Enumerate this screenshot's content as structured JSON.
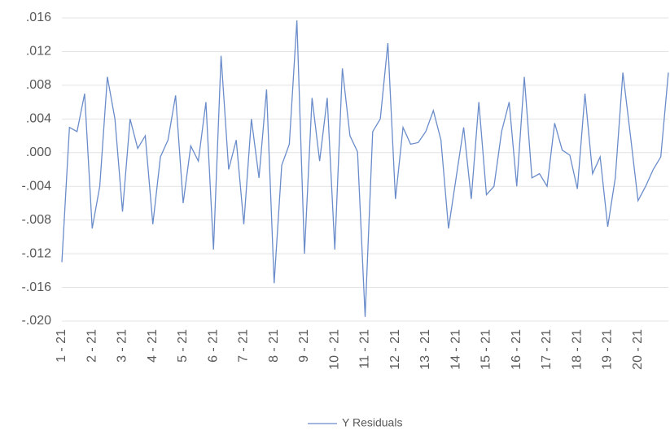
{
  "chart_data": {
    "type": "line",
    "categories": [
      "1 - 21",
      null,
      null,
      null,
      "2 - 21",
      null,
      null,
      null,
      "3 - 21",
      null,
      null,
      null,
      "4 - 21",
      null,
      null,
      null,
      "5 - 21",
      null,
      null,
      null,
      "6 - 21",
      null,
      null,
      null,
      "7 - 21",
      null,
      null,
      null,
      "8 - 21",
      null,
      null,
      null,
      "9 - 21",
      null,
      null,
      null,
      "10 - 21",
      null,
      null,
      null,
      "11 - 21",
      null,
      null,
      null,
      "12 - 21",
      null,
      null,
      null,
      "13 - 21",
      null,
      null,
      null,
      "14 - 21",
      null,
      null,
      null,
      "15 - 21",
      null,
      null,
      null,
      "16 - 21",
      null,
      null,
      null,
      "17 - 21",
      null,
      null,
      null,
      "18 - 21",
      null,
      null,
      null,
      "19 - 21",
      null,
      null,
      null,
      "20 - 21",
      null,
      null,
      null,
      null
    ],
    "series": [
      {
        "name": "Y Residuals",
        "color": "#6a8cca",
        "values": [
          -0.013,
          0.003,
          0.0025,
          0.007,
          -0.009,
          -0.004,
          0.009,
          0.004,
          -0.007,
          0.004,
          0.0005,
          0.002,
          -0.0085,
          -0.0005,
          0.0015,
          0.0068,
          -0.006,
          0.0008,
          -0.001,
          0.006,
          -0.0115,
          0.0115,
          -0.002,
          0.0015,
          -0.0085,
          0.004,
          -0.003,
          0.0075,
          -0.0155,
          -0.0015,
          0.001,
          0.0157,
          -0.012,
          0.0065,
          -0.001,
          0.0065,
          -0.0115,
          0.01,
          0.002,
          0.0001,
          -0.0195,
          0.0025,
          0.004,
          0.013,
          -0.0055,
          0.003,
          0.001,
          0.0012,
          0.0025,
          0.005,
          0.0015,
          -0.009,
          -0.003,
          0.003,
          -0.0055,
          0.006,
          -0.005,
          -0.004,
          0.0025,
          0.006,
          -0.004,
          0.009,
          -0.003,
          -0.0025,
          -0.004,
          0.0035,
          0.0003,
          -0.0003,
          -0.0043,
          0.007,
          -0.0025,
          -0.0005,
          -0.0088,
          -0.003,
          0.0095,
          0.002,
          -0.0057,
          -0.004,
          -0.002,
          -0.0005,
          0.0095
        ]
      }
    ],
    "ylim": [
      -0.02,
      0.016
    ],
    "yticks": [
      {
        "value": 0.016,
        "label": ".016"
      },
      {
        "value": 0.012,
        "label": ".012"
      },
      {
        "value": 0.008,
        "label": ".008"
      },
      {
        "value": 0.004,
        "label": ".004"
      },
      {
        "value": 0,
        "label": ".000"
      },
      {
        "value": -0.004,
        "label": "-.004"
      },
      {
        "value": -0.008,
        "label": "-.008"
      },
      {
        "value": -0.012,
        "label": "-.012"
      },
      {
        "value": -0.016,
        "label": "-.016"
      },
      {
        "value": -0.02,
        "label": "-.020"
      }
    ],
    "grid": true,
    "legend": "bottom"
  }
}
